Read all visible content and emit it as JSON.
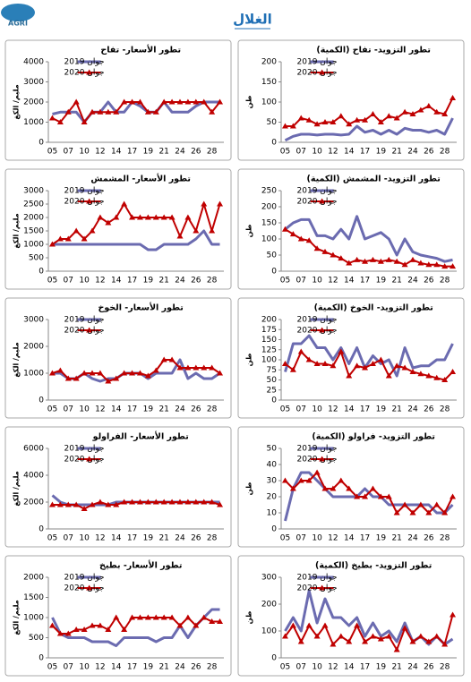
{
  "header": {
    "title": "الغلال",
    "logo": "AGRI"
  },
  "chart_data": [
    {
      "type": "line",
      "title": "تطور التزويد- تفاح (الكمية)",
      "y_label": "طن",
      "categories": [
        "05",
        null,
        "07",
        null,
        "10",
        null,
        "12",
        null,
        "14",
        null,
        "17",
        null,
        "19",
        null,
        "21",
        null,
        "24",
        null,
        "26",
        null,
        "28",
        null
      ],
      "series": [
        {
          "name": "جوان 2019",
          "color": "#6b6bb0",
          "values": [
            5,
            15,
            20,
            20,
            18,
            20,
            20,
            18,
            20,
            40,
            25,
            30,
            20,
            30,
            20,
            35,
            30,
            30,
            25,
            30,
            20,
            60
          ]
        },
        {
          "name": "جوان 2020",
          "color": "#c00000",
          "values": [
            40,
            40,
            60,
            55,
            45,
            50,
            50,
            65,
            45,
            55,
            55,
            70,
            50,
            65,
            60,
            75,
            70,
            80,
            90,
            75,
            70,
            110
          ]
        }
      ],
      "ylim": [
        0,
        200
      ],
      "yticks": [
        0,
        50,
        100,
        150,
        200
      ]
    },
    {
      "type": "line",
      "title": "تطور الأسعار- تفاح",
      "y_label": "مليم/ الكغ",
      "categories": [
        "05",
        null,
        "07",
        null,
        "10",
        null,
        "12",
        null,
        "14",
        null,
        "17",
        null,
        "19",
        null,
        "21",
        null,
        "24",
        null,
        "26",
        null,
        "28",
        null
      ],
      "series": [
        {
          "name": "جوان 2019",
          "color": "#6b6bb0",
          "values": [
            1400,
            1500,
            1500,
            1500,
            1000,
            1500,
            1500,
            2000,
            1500,
            1500,
            2000,
            1800,
            1500,
            1500,
            2000,
            1500,
            1500,
            1500,
            1800,
            2000,
            2000,
            2000
          ]
        },
        {
          "name": "جوان 2020",
          "color": "#c00000",
          "values": [
            1200,
            1000,
            1500,
            2000,
            1000,
            1500,
            1500,
            1500,
            1500,
            2000,
            2000,
            2000,
            1500,
            1500,
            2000,
            2000,
            2000,
            2000,
            2000,
            2000,
            1500,
            2000
          ]
        }
      ],
      "ylim": [
        0,
        4000
      ],
      "yticks": [
        0,
        1000,
        2000,
        3000,
        4000
      ]
    },
    {
      "type": "line",
      "title": "تطور التزويد- المشمش (الكمية)",
      "y_label": "طن",
      "categories": [
        "05",
        null,
        "07",
        null,
        "10",
        null,
        "12",
        null,
        "14",
        null,
        "17",
        null,
        "19",
        null,
        "21",
        null,
        "24",
        null,
        "26",
        null,
        "28",
        null
      ],
      "series": [
        {
          "name": "جوان 2019",
          "color": "#6b6bb0",
          "values": [
            130,
            150,
            160,
            160,
            110,
            110,
            100,
            130,
            100,
            170,
            100,
            110,
            120,
            100,
            50,
            100,
            60,
            50,
            45,
            40,
            30,
            35
          ]
        },
        {
          "name": "جوان 2020",
          "color": "#c00000",
          "values": [
            130,
            115,
            100,
            95,
            70,
            60,
            50,
            40,
            25,
            35,
            30,
            35,
            30,
            35,
            30,
            20,
            35,
            25,
            20,
            20,
            15,
            15
          ]
        }
      ],
      "ylim": [
        0,
        250
      ],
      "yticks": [
        0,
        50,
        100,
        150,
        200,
        250
      ]
    },
    {
      "type": "line",
      "title": "تطور الأسعار- المشمش",
      "y_label": "مليم/ الكغ",
      "categories": [
        "05",
        null,
        "07",
        null,
        "10",
        null,
        "12",
        null,
        "14",
        null,
        "17",
        null,
        "19",
        null,
        "21",
        null,
        "24",
        null,
        "26",
        null,
        "28",
        null
      ],
      "series": [
        {
          "name": "جوان 2019",
          "color": "#6b6bb0",
          "values": [
            1000,
            1000,
            1000,
            1000,
            1000,
            1000,
            1000,
            1000,
            1000,
            1000,
            1000,
            1000,
            800,
            800,
            1000,
            1000,
            1000,
            1000,
            1200,
            1500,
            1000,
            1000
          ]
        },
        {
          "name": "جوان 2020",
          "color": "#c00000",
          "values": [
            1000,
            1200,
            1200,
            1500,
            1200,
            1500,
            2000,
            1800,
            2000,
            2500,
            2000,
            2000,
            2000,
            2000,
            2000,
            2000,
            1300,
            2000,
            1500,
            2500,
            1500,
            2500
          ]
        }
      ],
      "ylim": [
        0,
        3000
      ],
      "yticks": [
        0,
        500,
        1000,
        1500,
        2000,
        2500,
        3000
      ]
    },
    {
      "type": "line",
      "title": "تطور التزويد- الخوخ (الكمية)",
      "y_label": "طن",
      "categories": [
        "05",
        null,
        "07",
        null,
        "10",
        null,
        "12",
        null,
        "14",
        null,
        "17",
        null,
        "19",
        null,
        "21",
        null,
        "24",
        null,
        "26",
        null,
        "28",
        null
      ],
      "series": [
        {
          "name": "جوان 2019",
          "color": "#6b6bb0",
          "values": [
            70,
            140,
            140,
            160,
            130,
            130,
            100,
            130,
            90,
            130,
            80,
            110,
            90,
            100,
            60,
            130,
            80,
            85,
            85,
            100,
            100,
            140
          ]
        },
        {
          "name": "جوان 2020",
          "color": "#c00000",
          "values": [
            90,
            75,
            120,
            100,
            90,
            90,
            85,
            120,
            60,
            85,
            80,
            90,
            100,
            60,
            85,
            80,
            70,
            65,
            60,
            55,
            50,
            70
          ]
        }
      ],
      "ylim": [
        0,
        200
      ],
      "yticks": [
        0,
        25,
        50,
        75,
        100,
        125,
        150,
        175,
        200
      ]
    },
    {
      "type": "line",
      "title": "تطور الأسعار- الخوخ",
      "y_label": "مليم/ الكغ",
      "categories": [
        "05",
        null,
        "07",
        null,
        "10",
        null,
        "12",
        null,
        "14",
        null,
        "17",
        null,
        "19",
        null,
        "21",
        null,
        "24",
        null,
        "26",
        null,
        "28",
        null
      ],
      "series": [
        {
          "name": "جوان 2019",
          "color": "#6b6bb0",
          "values": [
            1000,
            1000,
            800,
            800,
            1000,
            800,
            700,
            800,
            800,
            1000,
            1000,
            1000,
            800,
            1000,
            1000,
            1000,
            1500,
            800,
            1000,
            800,
            800,
            1000
          ]
        },
        {
          "name": "جوان 2020",
          "color": "#c00000",
          "values": [
            1000,
            1100,
            800,
            800,
            1000,
            1000,
            1000,
            700,
            800,
            1000,
            1000,
            1000,
            900,
            1100,
            1500,
            1500,
            1200,
            1200,
            1200,
            1200,
            1200,
            1000
          ]
        }
      ],
      "ylim": [
        0,
        3000
      ],
      "yticks": [
        0,
        1000,
        2000,
        3000
      ]
    },
    {
      "type": "line",
      "title": "تطور التزويد- فراولو (الكمية)",
      "y_label": "طن",
      "categories": [
        "05",
        null,
        "07",
        null,
        "10",
        null,
        "12",
        null,
        "14",
        null,
        "17",
        null,
        "19",
        null,
        "21",
        null,
        "24",
        null,
        "26",
        null,
        "28",
        null
      ],
      "series": [
        {
          "name": "جوان 2019",
          "color": "#6b6bb0",
          "values": [
            5,
            25,
            35,
            35,
            30,
            25,
            20,
            20,
            20,
            20,
            25,
            20,
            20,
            15,
            15,
            15,
            15,
            15,
            15,
            10,
            10,
            15
          ]
        },
        {
          "name": "جوان 2020",
          "color": "#c00000",
          "values": [
            30,
            25,
            30,
            30,
            35,
            25,
            25,
            30,
            25,
            20,
            20,
            25,
            20,
            20,
            10,
            15,
            10,
            15,
            10,
            15,
            10,
            20
          ]
        }
      ],
      "ylim": [
        0,
        50
      ],
      "yticks": [
        0,
        10,
        20,
        30,
        40,
        50
      ]
    },
    {
      "type": "line",
      "title": "تطور الأسعار- الفراولو",
      "y_label": "مليم/ الكغ",
      "categories": [
        "05",
        null,
        "07",
        null,
        "10",
        null,
        "12",
        null,
        "14",
        null,
        "17",
        null,
        "19",
        null,
        "21",
        null,
        "24",
        null,
        "26",
        null,
        "28",
        null
      ],
      "series": [
        {
          "name": "جوان 2019",
          "color": "#6b6bb0",
          "values": [
            2500,
            2000,
            1800,
            1800,
            1800,
            1800,
            1800,
            1800,
            2000,
            2000,
            2000,
            2000,
            2000,
            2000,
            2000,
            2000,
            2000,
            2000,
            2000,
            2000,
            2000,
            2000
          ]
        },
        {
          "name": "جوان 2020",
          "color": "#c00000",
          "values": [
            1800,
            1800,
            1800,
            1800,
            1500,
            1800,
            2000,
            1800,
            1800,
            2000,
            2000,
            2000,
            2000,
            2000,
            2000,
            2000,
            2000,
            2000,
            2000,
            2000,
            2000,
            1800
          ]
        }
      ],
      "ylim": [
        0,
        6000
      ],
      "yticks": [
        0,
        2000,
        4000,
        6000
      ]
    },
    {
      "type": "line",
      "title": "تطور التزويد- بطيخ (الكمية)",
      "y_label": "طن",
      "categories": [
        "05",
        null,
        "07",
        null,
        "10",
        null,
        "12",
        null,
        "14",
        null,
        "17",
        null,
        "19",
        null,
        "21",
        null,
        "24",
        null,
        "26",
        null,
        "28",
        null
      ],
      "series": [
        {
          "name": "جوان 2019",
          "color": "#6b6bb0",
          "values": [
            100,
            150,
            100,
            250,
            130,
            220,
            150,
            150,
            120,
            150,
            80,
            130,
            80,
            100,
            60,
            130,
            60,
            80,
            50,
            80,
            50,
            70
          ]
        },
        {
          "name": "جوان 2020",
          "color": "#c00000",
          "values": [
            80,
            120,
            60,
            120,
            80,
            120,
            50,
            80,
            60,
            120,
            60,
            80,
            70,
            80,
            30,
            110,
            60,
            80,
            60,
            80,
            50,
            160
          ]
        }
      ],
      "ylim": [
        0,
        300
      ],
      "yticks": [
        0,
        100,
        200,
        300
      ]
    },
    {
      "type": "line",
      "title": "تطور الأسعار- بطيخ",
      "y_label": "مليم/ الكغ",
      "categories": [
        "05",
        null,
        "07",
        null,
        "10",
        null,
        "12",
        null,
        "14",
        null,
        "17",
        null,
        "19",
        null,
        "21",
        null,
        "24",
        null,
        "26",
        null,
        "28",
        null
      ],
      "series": [
        {
          "name": "جوان 2019",
          "color": "#6b6bb0",
          "values": [
            1000,
            600,
            500,
            500,
            500,
            400,
            400,
            400,
            300,
            500,
            500,
            500,
            500,
            400,
            500,
            500,
            800,
            500,
            800,
            1000,
            1200,
            1200
          ]
        },
        {
          "name": "جوان 2020",
          "color": "#c00000",
          "values": [
            800,
            600,
            600,
            700,
            700,
            800,
            800,
            700,
            1000,
            700,
            1000,
            1000,
            1000,
            1000,
            1000,
            1000,
            800,
            1000,
            800,
            1000,
            900,
            900
          ]
        }
      ],
      "ylim": [
        0,
        2000
      ],
      "yticks": [
        0,
        500,
        1000,
        1500,
        2000
      ]
    }
  ]
}
